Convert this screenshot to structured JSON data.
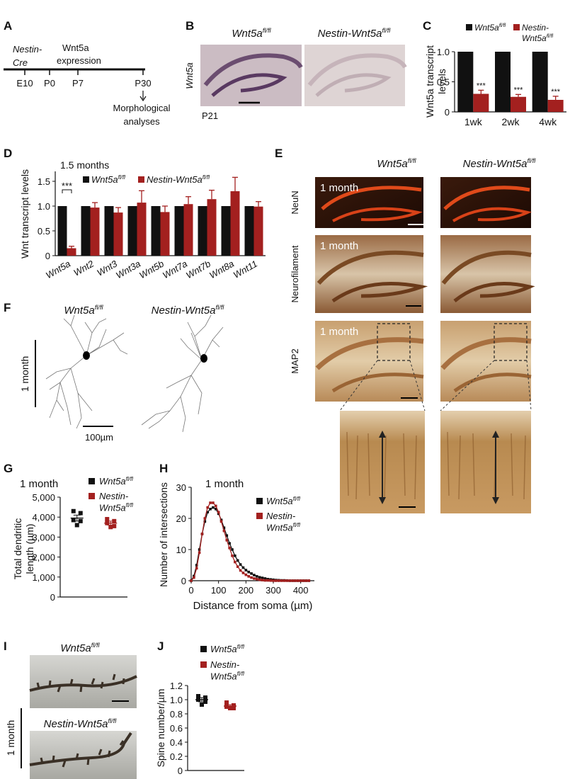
{
  "panels": {
    "A": {
      "letter": "A",
      "driver": [
        "Nestin-",
        "Cre"
      ],
      "event": [
        "Wnt5a",
        "expression"
      ],
      "timepoints": [
        "E10",
        "P0",
        "P7",
        "P30"
      ],
      "outcome": [
        "Morphological",
        "analyses"
      ]
    },
    "B": {
      "letter": "B",
      "columns": [
        {
          "base": "Wnt5a",
          "sup": "fl/fl"
        },
        {
          "base": "Nestin-Wnt5a",
          "sup": "fl/fl"
        }
      ],
      "probe": "Wnt5a",
      "age": "P21"
    },
    "C": {
      "letter": "C",
      "type": "bar",
      "y_label": [
        "Wnt5a transcript",
        "levels"
      ],
      "categories": [
        "1wk",
        "2wk",
        "4wk"
      ],
      "series": [
        {
          "name": {
            "base": "Wnt5a",
            "sup": "fl/fl"
          },
          "color": "#111111",
          "values": [
            1,
            1,
            1
          ]
        },
        {
          "name": {
            "line1": "Nestin-",
            "line2": "Wnt5a",
            "sup": "fl/fl"
          },
          "color": "#a3201f",
          "values": [
            0.3,
            0.25,
            0.2
          ],
          "errors": [
            0.06,
            0.04,
            0.06
          ]
        }
      ],
      "significance": [
        "***",
        "***",
        "***"
      ],
      "ylim": [
        0,
        1
      ],
      "yticks": [
        0,
        0.5,
        {
          "value": 1,
          "label": "1.0"
        }
      ]
    },
    "D": {
      "letter": "D",
      "type": "bar",
      "subtitle": "1.5 months",
      "y_label": [
        "Wnt transcript levels"
      ],
      "categories": [
        "Wnt5a",
        "Wnt2",
        "Wnt3",
        "Wnt3a",
        "Wnt5b",
        "Wnt7a",
        "Wnt7b",
        "Wnt8a",
        "Wnt11"
      ],
      "series": [
        {
          "name": {
            "base": "Wnt5a",
            "sup": "fl/fl"
          },
          "color": "#111111",
          "values": [
            1,
            1,
            1,
            1,
            1,
            1,
            1,
            1,
            1
          ]
        },
        {
          "name": {
            "base": "Nestin-Wnt5a",
            "sup": "fl/fl"
          },
          "color": "#a3201f",
          "values": [
            0.15,
            0.97,
            0.87,
            1.07,
            0.88,
            1.04,
            1.14,
            1.3,
            0.99
          ],
          "errors": [
            0.04,
            0.1,
            0.1,
            0.24,
            0.12,
            0.15,
            0.18,
            0.28,
            0.1
          ]
        }
      ],
      "significance": [
        "***",
        null,
        null,
        null,
        null,
        null,
        null,
        null,
        null
      ],
      "ylim": [
        0,
        1.7
      ],
      "yticks": [
        0,
        0.5,
        {
          "value": 1,
          "label": "1.0"
        },
        1.5
      ]
    },
    "E": {
      "letter": "E",
      "columns": [
        {
          "base": "Wnt5a",
          "sup": "fl/fl"
        },
        {
          "base": "Nestin-Wnt5a",
          "sup": "fl/fl"
        }
      ],
      "rows": [
        "NeuN",
        "Neurofilament",
        "MAP2"
      ],
      "age": "1 month"
    },
    "F": {
      "letter": "F",
      "columns": [
        {
          "base": "Wnt5a",
          "sup": "fl/fl"
        },
        {
          "base": "Nestin-Wnt5a",
          "sup": "fl/fl"
        }
      ],
      "age": "1 month",
      "scale": "100µm"
    },
    "G": {
      "letter": "G",
      "type": "dot",
      "subtitle": "1 month",
      "y_label": [
        "Total dendritic",
        "length (µm)"
      ],
      "series": [
        {
          "name": {
            "base": "Wnt5a",
            "sup": "fl/fl"
          },
          "color": "#111111",
          "values": [
            4300,
            4200,
            3850,
            3800,
            3600
          ],
          "mean": 3950,
          "sem": 150
        },
        {
          "name": {
            "line1": "Nestin-",
            "line2": "Wnt5a",
            "sup": "fl/fl"
          },
          "color": "#a3201f",
          "values": [
            3900,
            3800,
            3700,
            3550,
            3500
          ],
          "mean": 3700,
          "sem": 100
        }
      ],
      "ylim": [
        0,
        5000
      ],
      "yticks": [
        0,
        {
          "value": 1000,
          "label": "1,000"
        },
        {
          "value": 2000,
          "label": "2,000"
        },
        {
          "value": 3000,
          "label": "3,000"
        },
        {
          "value": 4000,
          "label": "4,000"
        },
        {
          "value": 5000,
          "label": "5,000"
        }
      ]
    },
    "H": {
      "letter": "H",
      "type": "line",
      "subtitle": "1 month",
      "y_label": "Number of intersections",
      "x_label": "Distance from soma (µm)",
      "x": [
        0,
        10,
        20,
        30,
        40,
        50,
        60,
        70,
        80,
        90,
        100,
        110,
        120,
        130,
        140,
        150,
        160,
        170,
        180,
        190,
        200,
        210,
        220,
        230,
        240,
        250,
        260,
        270,
        280,
        290,
        300,
        310,
        320,
        330,
        340,
        350,
        360,
        370,
        380,
        390,
        400,
        410,
        420,
        430
      ],
      "series": [
        {
          "name": {
            "base": "Wnt5a",
            "sup": "fl/fl"
          },
          "color": "#111111",
          "values": [
            0,
            1.5,
            5,
            10,
            15,
            19,
            22,
            23,
            23.5,
            23,
            21.5,
            19.5,
            17,
            14.5,
            12,
            10,
            8,
            6.5,
            5.2,
            4.2,
            3.4,
            2.8,
            2.3,
            1.8,
            1.4,
            1.1,
            0.9,
            0.7,
            0.5,
            0.4,
            0.3,
            0.2,
            0.15,
            0.1,
            0.1,
            0.05,
            0,
            0,
            0,
            0,
            0,
            0,
            0,
            0
          ]
        },
        {
          "name": {
            "line1": "Nestin-",
            "line2": "Wnt5a",
            "sup": "fl/fl"
          },
          "color": "#a3201f",
          "values": [
            0,
            1,
            4,
            9,
            15,
            20,
            23.5,
            25,
            25,
            24,
            22,
            19,
            16,
            13,
            10.5,
            8,
            6,
            4.5,
            3.3,
            2.5,
            1.9,
            1.4,
            1,
            0.7,
            0.5,
            0.3,
            0.2,
            0.1,
            0.1,
            0.05,
            0,
            0,
            0,
            0,
            0,
            0,
            0,
            0,
            0,
            0,
            0,
            0,
            0,
            0
          ]
        }
      ],
      "xlim": [
        0,
        450
      ],
      "ylim": [
        0,
        30
      ],
      "xticks": [
        0,
        100,
        200,
        300,
        400
      ],
      "yticks": [
        0,
        10,
        20,
        30
      ]
    },
    "I": {
      "letter": "I",
      "columns": [
        {
          "base": "Wnt5a",
          "sup": "fl/fl"
        },
        {
          "base": "Nestin-Wnt5a",
          "sup": "fl/fl"
        }
      ],
      "age": "1 month"
    },
    "J": {
      "letter": "J",
      "type": "dot",
      "y_label": [
        "Spine number/µm"
      ],
      "series": [
        {
          "name": {
            "base": "Wnt5a",
            "sup": "fl/fl"
          },
          "color": "#111111",
          "values": [
            1.05,
            1.03,
            1.0,
            0.97,
            0.93
          ],
          "mean": 1.0,
          "sem": 0.03
        },
        {
          "name": {
            "line1": "Nestin-",
            "line2": "Wnt5a",
            "sup": "fl/fl"
          },
          "color": "#a3201f",
          "values": [
            0.96,
            0.92,
            0.9,
            0.88,
            0.88
          ],
          "mean": 0.91,
          "sem": 0.02
        }
      ],
      "ylim": [
        0,
        1.2
      ],
      "yticks": [
        0,
        0.2,
        0.4,
        0.6,
        0.8,
        {
          "value": 1,
          "label": "1.0"
        },
        1.2
      ]
    }
  }
}
